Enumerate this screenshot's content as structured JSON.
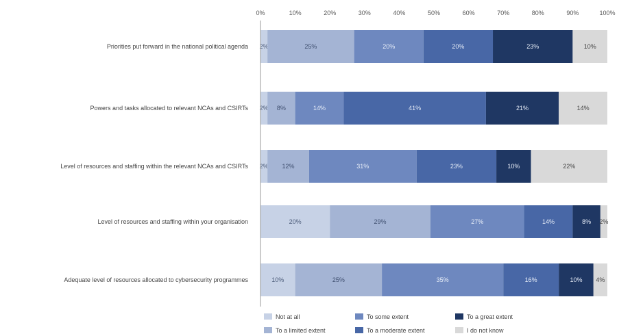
{
  "chart_data": {
    "type": "bar",
    "orientation": "horizontal",
    "stacked": true,
    "x_ticks": [
      "0%",
      "10%",
      "20%",
      "30%",
      "40%",
      "50%",
      "60%",
      "70%",
      "80%",
      "90%",
      "100%"
    ],
    "xlim": [
      0,
      100
    ],
    "grid": false,
    "legend_position": "bottom",
    "categories": [
      "Priorities put forward in the national political agenda",
      "Powers and tasks allocated to relevant NCAs and CSIRTs",
      "Level  of resources and staffing within the relevant NCAs and CSIRTs",
      "Level of resources and staffing within your organisation",
      "Adequate  level of resources allocated to cybersecurity programmes"
    ],
    "series": [
      {
        "name": "Not at all",
        "color": "#c7d2e6",
        "label_color": "#4a5a78",
        "values": [
          2,
          2,
          2,
          20,
          10
        ],
        "labels": [
          "2%",
          "2%",
          "2%",
          "20%",
          "10%"
        ]
      },
      {
        "name": "To a limited extent",
        "color": "#a4b4d4",
        "label_color": "#3e4e6e",
        "values": [
          25,
          8,
          12,
          29,
          25
        ],
        "labels": [
          "25%",
          "8%",
          "12%",
          "29%",
          "25%"
        ]
      },
      {
        "name": "To some extent",
        "color": "#6e88bf",
        "label_color": "#e8eef8",
        "values": [
          20,
          14,
          31,
          27,
          35
        ],
        "labels": [
          "20%",
          "14%",
          "31%",
          "27%",
          "35%"
        ]
      },
      {
        "name": "To a moderate extent",
        "color": "#4867a6",
        "label_color": "#e8eef8",
        "values": [
          20,
          41,
          23,
          14,
          16
        ],
        "labels": [
          "20%",
          "41%",
          "23%",
          "14%",
          "16%"
        ]
      },
      {
        "name": "To a great extent",
        "color": "#1f3763",
        "label_color": "#e8eef8",
        "values": [
          23,
          21,
          10,
          8,
          10
        ],
        "labels": [
          "23%",
          "21%",
          "10%",
          "8%",
          "10%"
        ]
      },
      {
        "name": "I do not know",
        "color": "#d9d9d9",
        "label_color": "#444444",
        "values": [
          10,
          14,
          22,
          2,
          4
        ],
        "labels": [
          "10%",
          "14%",
          "22%",
          "2%",
          "4%"
        ]
      }
    ]
  }
}
